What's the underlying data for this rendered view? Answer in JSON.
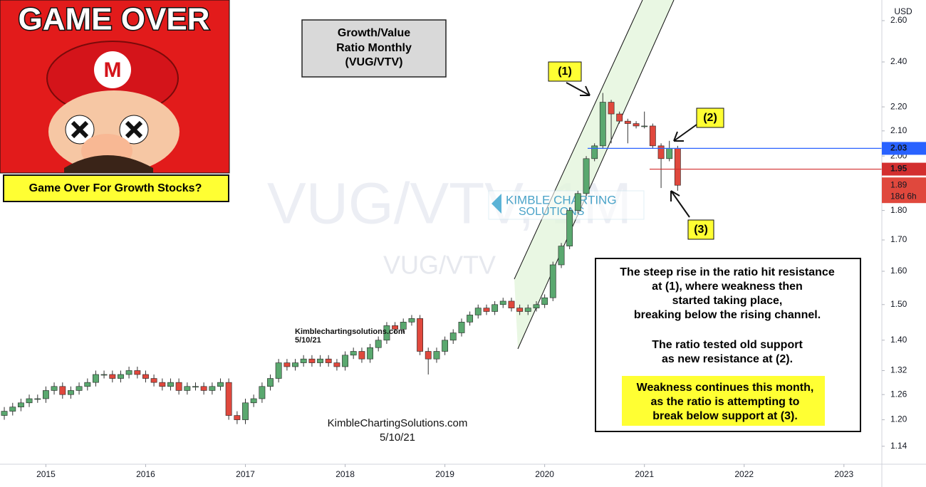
{
  "chart_data": {
    "type": "candlestick",
    "title": [
      "Growth/Value",
      "Ratio Monthly",
      "(VUG/VTV)"
    ],
    "watermark": "VUG/VTV, 1M",
    "symbol": "VUG/VTV",
    "currency": "USD",
    "logo": [
      "KIMBLE CHARTING",
      "SOLUTIONS"
    ],
    "banner": "GAME OVER",
    "caption": "Game Over For Growth Stocks?",
    "credit_small": [
      "Kimblechartingsolutions.com",
      "5/10/21"
    ],
    "credit_large": [
      "KimbleChartingSolutions.com",
      "5/10/21"
    ],
    "callouts": [
      "(1)",
      "(2)",
      "(3)"
    ],
    "commentary": [
      "The steep rise in the ratio hit resistance",
      "at (1), where weakness then",
      "started taking place,",
      "breaking below the rising channel.",
      "The ratio tested old support",
      "as new resistance at (2)."
    ],
    "highlight": [
      "Weakness continues this month,",
      "as the ratio is attempting to",
      "break below support at (3)."
    ],
    "log_scale": true,
    "grid": false,
    "up_color": "#5aa86f",
    "down_color": "#e0483d",
    "levels": [
      {
        "value": 2.03,
        "color": "#2962ff"
      },
      {
        "value": 1.95,
        "color": "#d32f2f"
      }
    ],
    "last_price": 1.89,
    "countdown": "18d 6h",
    "xlim": [
      2014.54,
      2023.38
    ],
    "xticks": [
      2015,
      2016,
      2017,
      2018,
      2019,
      2020,
      2021,
      2022,
      2023
    ],
    "ylim": [
      1.101,
      2.706
    ],
    "yticks": [
      {
        "value": 2.6,
        "label": "2.60"
      },
      {
        "value": 2.4,
        "label": "2.40"
      },
      {
        "value": 2.2,
        "label": "2.20"
      },
      {
        "value": 2.1,
        "label": "2.10"
      },
      {
        "value": 2.0,
        "label": "2.00"
      },
      {
        "value": 1.8,
        "label": "1.80"
      },
      {
        "value": 1.7,
        "label": "1.70"
      },
      {
        "value": 1.6,
        "label": "1.60"
      },
      {
        "value": 1.5,
        "label": "1.50"
      },
      {
        "value": 1.4,
        "label": "1.40"
      },
      1.32,
      1.26,
      {
        "value": 1.2,
        "label": "1.20"
      },
      1.14
    ],
    "x": [
      2014.583,
      2014.667,
      2014.75,
      2014.833,
      2014.917,
      2015,
      2015.083,
      2015.167,
      2015.25,
      2015.333,
      2015.417,
      2015.5,
      2015.583,
      2015.667,
      2015.75,
      2015.833,
      2015.917,
      2016,
      2016.083,
      2016.167,
      2016.25,
      2016.333,
      2016.417,
      2016.5,
      2016.583,
      2016.667,
      2016.75,
      2016.833,
      2016.917,
      2017,
      2017.083,
      2017.167,
      2017.25,
      2017.333,
      2017.417,
      2017.5,
      2017.583,
      2017.667,
      2017.75,
      2017.833,
      2017.917,
      2018,
      2018.083,
      2018.167,
      2018.25,
      2018.333,
      2018.417,
      2018.5,
      2018.583,
      2018.667,
      2018.75,
      2018.833,
      2018.917,
      2019,
      2019.083,
      2019.167,
      2019.25,
      2019.333,
      2019.417,
      2019.5,
      2019.583,
      2019.667,
      2019.75,
      2019.833,
      2019.917,
      2020,
      2020.083,
      2020.167,
      2020.25,
      2020.333,
      2020.417,
      2020.5,
      2020.583,
      2020.667,
      2020.75,
      2020.833,
      2020.917,
      2021,
      2021.083,
      2021.167,
      2021.25,
      2021.333
    ],
    "open": [
      1.21,
      1.22,
      1.23,
      1.24,
      1.25,
      1.25,
      1.27,
      1.28,
      1.26,
      1.27,
      1.28,
      1.29,
      1.31,
      1.31,
      1.3,
      1.31,
      1.32,
      1.31,
      1.3,
      1.29,
      1.28,
      1.29,
      1.27,
      1.28,
      1.28,
      1.27,
      1.28,
      1.29,
      1.21,
      1.2,
      1.24,
      1.25,
      1.28,
      1.3,
      1.34,
      1.33,
      1.34,
      1.35,
      1.34,
      1.35,
      1.34,
      1.33,
      1.36,
      1.37,
      1.35,
      1.38,
      1.4,
      1.44,
      1.43,
      1.45,
      1.46,
      1.37,
      1.35,
      1.37,
      1.4,
      1.42,
      1.45,
      1.47,
      1.49,
      1.48,
      1.5,
      1.51,
      1.49,
      1.48,
      1.49,
      1.5,
      1.52,
      1.62,
      1.68,
      1.8,
      1.86,
      1.99,
      2.04,
      2.22,
      2.17,
      2.14,
      2.13,
      2.12,
      2.12,
      2.04,
      1.99,
      2.03
    ],
    "high": [
      1.23,
      1.24,
      1.25,
      1.26,
      1.26,
      1.28,
      1.29,
      1.29,
      1.28,
      1.29,
      1.3,
      1.32,
      1.32,
      1.32,
      1.32,
      1.33,
      1.33,
      1.32,
      1.31,
      1.3,
      1.3,
      1.3,
      1.29,
      1.29,
      1.29,
      1.29,
      1.3,
      1.3,
      1.22,
      1.25,
      1.26,
      1.29,
      1.31,
      1.35,
      1.35,
      1.35,
      1.36,
      1.36,
      1.36,
      1.36,
      1.35,
      1.37,
      1.38,
      1.38,
      1.39,
      1.41,
      1.45,
      1.45,
      1.46,
      1.47,
      1.47,
      1.38,
      1.38,
      1.41,
      1.43,
      1.46,
      1.48,
      1.5,
      1.5,
      1.51,
      1.52,
      1.52,
      1.5,
      1.5,
      1.51,
      1.53,
      1.63,
      1.69,
      1.81,
      1.87,
      2.0,
      2.05,
      2.26,
      2.23,
      2.18,
      2.15,
      2.14,
      2.18,
      2.13,
      2.05,
      2.06,
      2.04
    ],
    "low": [
      1.2,
      1.21,
      1.22,
      1.23,
      1.24,
      1.24,
      1.26,
      1.25,
      1.25,
      1.26,
      1.27,
      1.28,
      1.3,
      1.29,
      1.29,
      1.3,
      1.3,
      1.29,
      1.28,
      1.27,
      1.27,
      1.26,
      1.26,
      1.27,
      1.26,
      1.26,
      1.27,
      1.2,
      1.19,
      1.19,
      1.23,
      1.24,
      1.27,
      1.29,
      1.32,
      1.32,
      1.33,
      1.33,
      1.33,
      1.33,
      1.32,
      1.32,
      1.35,
      1.34,
      1.34,
      1.37,
      1.39,
      1.42,
      1.42,
      1.44,
      1.36,
      1.31,
      1.34,
      1.36,
      1.39,
      1.41,
      1.44,
      1.46,
      1.47,
      1.47,
      1.49,
      1.48,
      1.47,
      1.47,
      1.48,
      1.49,
      1.51,
      1.61,
      1.67,
      1.79,
      1.85,
      1.98,
      2.03,
      2.05,
      2.13,
      2.05,
      2.11,
      2.11,
      2.03,
      1.88,
      1.98,
      1.87
    ],
    "close": [
      1.22,
      1.23,
      1.24,
      1.25,
      1.25,
      1.27,
      1.28,
      1.26,
      1.27,
      1.28,
      1.29,
      1.31,
      1.31,
      1.3,
      1.31,
      1.32,
      1.31,
      1.3,
      1.29,
      1.28,
      1.29,
      1.27,
      1.28,
      1.28,
      1.27,
      1.28,
      1.29,
      1.21,
      1.2,
      1.24,
      1.25,
      1.28,
      1.3,
      1.34,
      1.33,
      1.34,
      1.35,
      1.34,
      1.35,
      1.34,
      1.33,
      1.36,
      1.37,
      1.35,
      1.38,
      1.4,
      1.44,
      1.43,
      1.45,
      1.46,
      1.37,
      1.35,
      1.37,
      1.4,
      1.42,
      1.45,
      1.47,
      1.49,
      1.48,
      1.5,
      1.51,
      1.49,
      1.48,
      1.49,
      1.5,
      1.52,
      1.62,
      1.68,
      1.8,
      1.86,
      1.99,
      2.04,
      2.22,
      2.17,
      2.14,
      2.13,
      2.12,
      2.12,
      2.04,
      1.99,
      2.03,
      1.89
    ]
  }
}
